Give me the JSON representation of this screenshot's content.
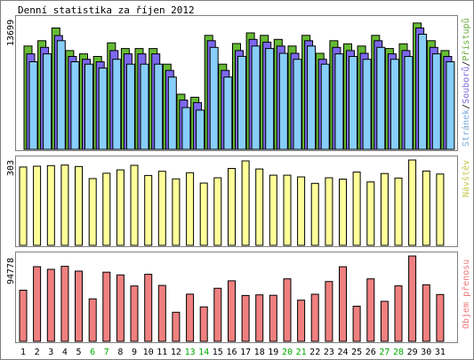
{
  "chart_data": [
    {
      "type": "bar",
      "title": "Denní statistika za říjen 2012",
      "ylabel_left": "13699",
      "ylim": [
        0,
        13699
      ],
      "legend": [
        {
          "text": "Stránek",
          "color": "#7aa8d8"
        },
        {
          "text": "Souborů",
          "color": "#7a6ad8"
        },
        {
          "text": "Přístupů",
          "color": "#6aaa3a"
        }
      ],
      "series": [
        {
          "name": "Přístupů",
          "color": "#66bb33",
          "values": [
            10760,
            11311,
            12630,
            10280,
            9943,
            9670,
            11091,
            10500,
            10500,
            10500,
            8864,
            5736,
            5424,
            11862,
            8864,
            11019,
            12125,
            11863,
            11454,
            10760,
            11863,
            10000,
            11311,
            10983,
            10760,
            11863,
            10500,
            10983,
            13150,
            11311,
            10286
          ]
        },
        {
          "name": "Souborů",
          "color": "#7b68ee",
          "values": [
            9943,
            10621,
            11850,
            9670,
            9378,
            9114,
            10286,
            9943,
            9943,
            9943,
            8221,
            5127,
            4867,
            11311,
            8221,
            10286,
            11454,
            11163,
            10760,
            10000,
            11311,
            9378,
            10621,
            10286,
            10000,
            11311,
            9943,
            10283,
            12630,
            10621,
            9670
          ]
        },
        {
          "name": "Stránek",
          "color": "#87cefa",
          "values": [
            9114,
            9943,
            11311,
            9114,
            8864,
            8463,
            9375,
            8863,
            8863,
            8864,
            7523,
            4349,
            4082,
            10621,
            7523,
            9681,
            10760,
            10500,
            10000,
            9378,
            10760,
            8863,
            9943,
            9670,
            9376,
            10621,
            9376,
            9670,
            11987,
            9943,
            9114
          ]
        }
      ]
    },
    {
      "type": "bar",
      "ylabel_left": "303",
      "ylabel_right": "Návštěv",
      "ylim": [
        0,
        303
      ],
      "series": [
        {
          "name": "Návštěv",
          "color": "#ffff99",
          "values": [
            278,
            281,
            283,
            285,
            280,
            237,
            256,
            268,
            284,
            248,
            263,
            236,
            258,
            221,
            240,
            273,
            300,
            271,
            249,
            249,
            243,
            220,
            240,
            235,
            260,
            225,
            255,
            239,
            303,
            264,
            253
          ]
        }
      ]
    },
    {
      "type": "bar",
      "ylabel_left": "94778",
      "ylabel_right": "Objem přenosu",
      "ylim": [
        0,
        94778
      ],
      "series": [
        {
          "name": "Objem přenosu",
          "color": "#f08080",
          "values": [
            56800,
            82900,
            80000,
            83300,
            78000,
            47200,
            76800,
            73700,
            61500,
            74400,
            62100,
            32300,
            52400,
            38300,
            58900,
            67200,
            50900,
            51600,
            51100,
            69400,
            45700,
            52300,
            66400,
            82800,
            39000,
            69400,
            44400,
            61600,
            94778,
            62800,
            52000
          ]
        }
      ]
    }
  ],
  "x_axis": {
    "categories": [
      "1",
      "2",
      "3",
      "4",
      "5",
      "6",
      "7",
      "8",
      "9",
      "10",
      "11",
      "12",
      "13",
      "14",
      "15",
      "16",
      "17",
      "18",
      "19",
      "20",
      "21",
      "22",
      "23",
      "24",
      "25",
      "26",
      "27",
      "28",
      "29",
      "30",
      "31"
    ],
    "weekend_days": [
      6,
      7,
      13,
      14,
      20,
      21,
      27,
      28
    ],
    "weekday_color": "#000000",
    "weekend_color": "#00aa00"
  },
  "colors": {
    "frame": "#808080",
    "background": "#ffffff",
    "bar_outline": "#000000"
  }
}
